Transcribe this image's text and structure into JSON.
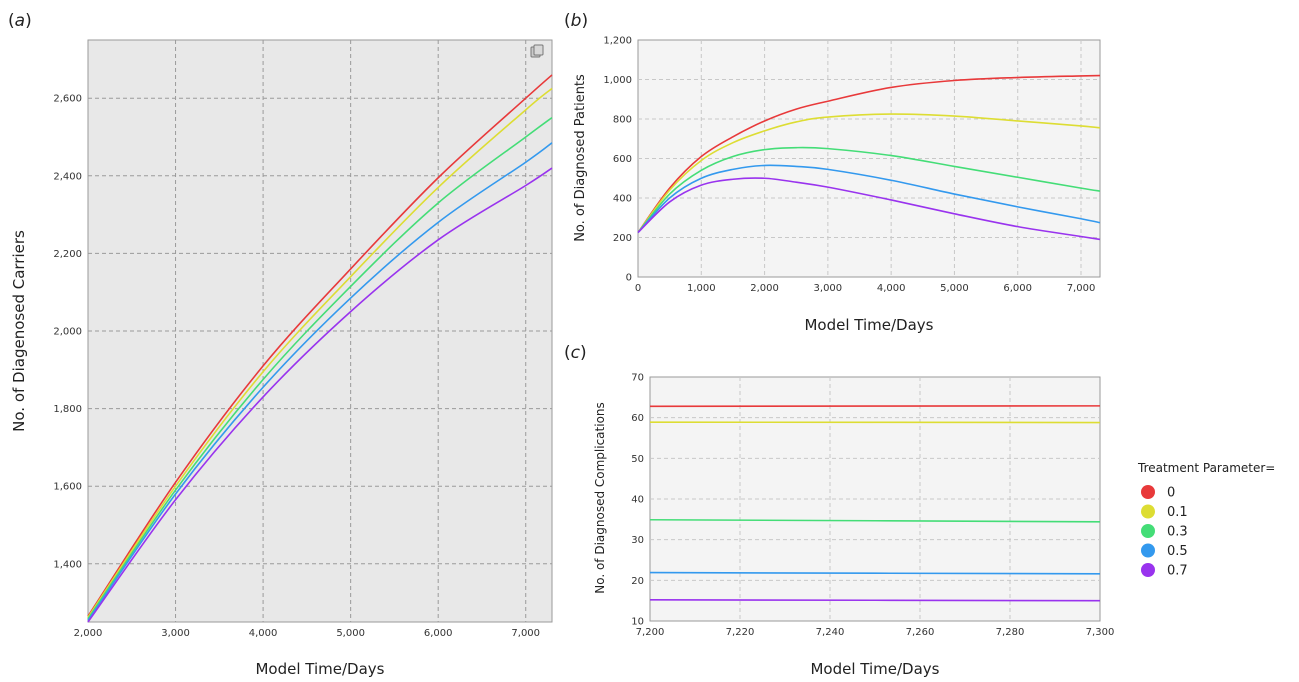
{
  "chart_data": [
    {
      "panel": "(a)",
      "type": "line",
      "background": "#e8e8e8",
      "grid": true,
      "xlabel": "Model Time/Days",
      "ylabel": "No. of Diagenosed Carriers",
      "xlim": [
        2000,
        7300
      ],
      "ylim": [
        1250,
        2750
      ],
      "x_ticks": [
        2000,
        3000,
        4000,
        5000,
        6000,
        7000
      ],
      "x_tick_labels": [
        "2,000",
        "3,000",
        "4,000",
        "5,000",
        "6,000",
        "7,000"
      ],
      "y_ticks": [
        1400,
        1600,
        1800,
        2000,
        2200,
        2400,
        2600
      ],
      "y_tick_labels": [
        "1,400",
        "1,600",
        "1,800",
        "2,000",
        "2,200",
        "2,400",
        "2,600"
      ],
      "x": [
        2000,
        3000,
        4000,
        5000,
        6000,
        7000,
        7300
      ],
      "series": [
        {
          "name": "0",
          "color": "#e8393a",
          "values": [
            1265,
            1610,
            1910,
            2160,
            2395,
            2600,
            2660
          ]
        },
        {
          "name": "0.1",
          "color": "#dddd33",
          "values": [
            1262,
            1600,
            1895,
            2140,
            2370,
            2570,
            2625
          ]
        },
        {
          "name": "0.3",
          "color": "#44dd77",
          "values": [
            1258,
            1590,
            1875,
            2115,
            2330,
            2500,
            2550
          ]
        },
        {
          "name": "0.5",
          "color": "#3399ee",
          "values": [
            1254,
            1580,
            1855,
            2085,
            2280,
            2435,
            2485
          ]
        },
        {
          "name": "0.7",
          "color": "#9933ee",
          "values": [
            1250,
            1565,
            1830,
            2050,
            2235,
            2375,
            2420
          ]
        }
      ]
    },
    {
      "panel": "(b)",
      "type": "line",
      "background": "#f4f4f4",
      "grid": true,
      "xlabel": "Model Time/Days",
      "ylabel": "No. of Diagnosed Patients",
      "xlim": [
        0,
        7300
      ],
      "ylim": [
        0,
        1200
      ],
      "x_ticks": [
        0,
        1000,
        2000,
        3000,
        4000,
        5000,
        6000,
        7000
      ],
      "x_tick_labels": [
        "0",
        "1,000",
        "2,000",
        "3,000",
        "4,000",
        "5,000",
        "6,000",
        "7,000"
      ],
      "y_ticks": [
        0,
        200,
        400,
        600,
        800,
        1000,
        1200
      ],
      "y_tick_labels": [
        "0",
        "200",
        "400",
        "600",
        "800",
        "1,000",
        "1,200"
      ],
      "x": [
        0,
        500,
        1000,
        1500,
        2000,
        2500,
        3000,
        4000,
        5000,
        6000,
        7000,
        7300
      ],
      "series": [
        {
          "name": "0",
          "color": "#e8393a",
          "values": [
            225,
            450,
            610,
            710,
            790,
            850,
            890,
            960,
            995,
            1010,
            1018,
            1020
          ]
        },
        {
          "name": "0.1",
          "color": "#dddd33",
          "values": [
            225,
            440,
            590,
            680,
            740,
            785,
            810,
            825,
            815,
            790,
            765,
            755
          ]
        },
        {
          "name": "0.3",
          "color": "#44dd77",
          "values": [
            225,
            420,
            540,
            610,
            645,
            655,
            650,
            615,
            560,
            505,
            450,
            435
          ]
        },
        {
          "name": "0.5",
          "color": "#3399ee",
          "values": [
            225,
            400,
            500,
            545,
            565,
            560,
            545,
            490,
            420,
            355,
            295,
            275
          ]
        },
        {
          "name": "0.7",
          "color": "#9933ee",
          "values": [
            225,
            380,
            465,
            495,
            500,
            480,
            455,
            390,
            320,
            255,
            205,
            190
          ]
        }
      ]
    },
    {
      "panel": "(c)",
      "type": "line",
      "background": "#f4f4f4",
      "grid": true,
      "xlabel": "Model Time/Days",
      "ylabel": "No. of Diagnosed Complications",
      "xlim": [
        7200,
        7300
      ],
      "ylim": [
        10,
        70
      ],
      "x_ticks": [
        7200,
        7220,
        7240,
        7260,
        7280,
        7300
      ],
      "x_tick_labels": [
        "7,200",
        "7,220",
        "7,240",
        "7,260",
        "7,280",
        "7,300"
      ],
      "y_ticks": [
        10,
        20,
        30,
        40,
        50,
        60,
        70
      ],
      "y_tick_labels": [
        "10",
        "20",
        "30",
        "40",
        "50",
        "60",
        "70"
      ],
      "x": [
        7200,
        7300
      ],
      "series": [
        {
          "name": "0",
          "color": "#e8393a",
          "values": [
            62.8,
            62.9
          ]
        },
        {
          "name": "0.1",
          "color": "#dddd33",
          "values": [
            58.9,
            58.8
          ]
        },
        {
          "name": "0.3",
          "color": "#44dd77",
          "values": [
            34.9,
            34.4
          ]
        },
        {
          "name": "0.5",
          "color": "#3399ee",
          "values": [
            21.9,
            21.6
          ]
        },
        {
          "name": "0.7",
          "color": "#9933ee",
          "values": [
            15.2,
            15.0
          ]
        }
      ]
    }
  ],
  "legend": {
    "title": "Treatment Parameter=",
    "items": [
      {
        "label": "0",
        "color": "#e8393a"
      },
      {
        "label": "0.1",
        "color": "#dddd33"
      },
      {
        "label": "0.3",
        "color": "#44dd77"
      },
      {
        "label": "0.5",
        "color": "#3399ee"
      },
      {
        "label": "0.7",
        "color": "#9933ee"
      }
    ]
  },
  "panel_a_corner_icon": "copy-icon"
}
